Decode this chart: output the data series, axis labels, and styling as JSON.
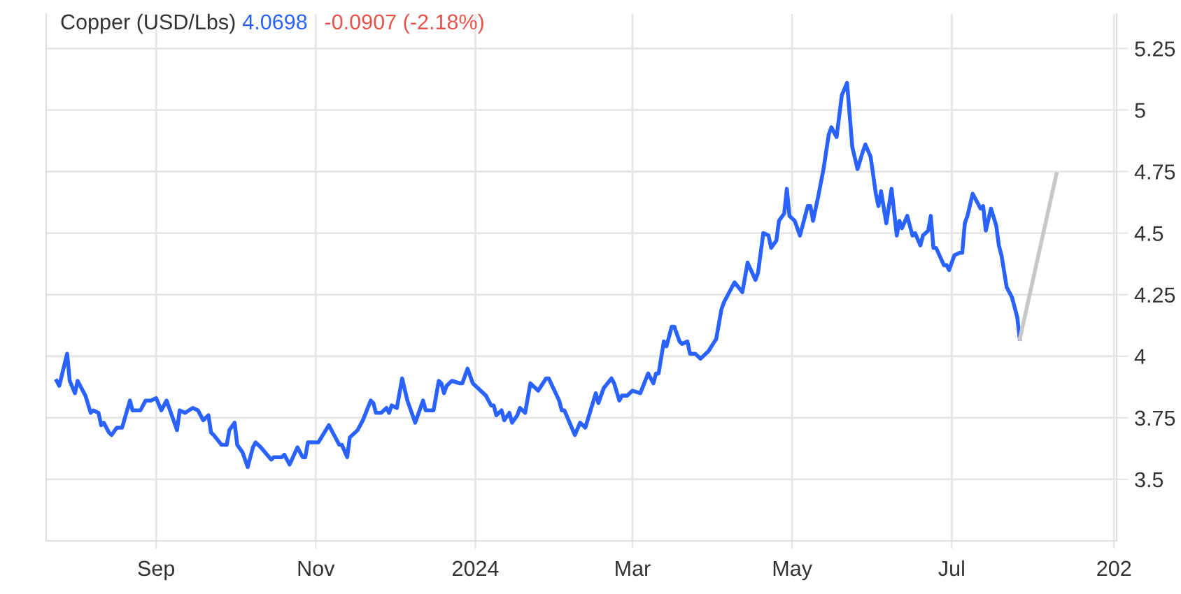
{
  "chart_data": {
    "type": "line",
    "title": "Copper (USD/Lbs)",
    "subtitle": "4.0698",
    "annotations": [
      "-0.0907 (-2.18%)"
    ],
    "xlim": [
      "2023-07-21",
      "2024-09-02"
    ],
    "xticks": [
      {
        "value": "2023-09-01",
        "label": "Sep"
      },
      {
        "value": "2023-11-01",
        "label": "Nov"
      },
      {
        "value": "2024-01-01",
        "label": "2024"
      },
      {
        "value": "2024-03-01",
        "label": "Mar"
      },
      {
        "value": "2024-05-01",
        "label": "May"
      },
      {
        "value": "2024-07-01",
        "label": "Jul"
      },
      {
        "value": "2024-09-01",
        "label": "202"
      }
    ],
    "ylim": [
      3.25,
      5.39
    ],
    "yticks": [
      3.5,
      3.75,
      4,
      4.25,
      4.5,
      4.75,
      5,
      5.25
    ],
    "grid": true,
    "marker": "none",
    "line_style": "solid",
    "series": [
      {
        "color": "#2962ff",
        "x": [
          "2023-07-25",
          "2023-07-26",
          "2023-07-29",
          "2023-07-30",
          "2023-08-01",
          "2023-08-02",
          "2023-08-05",
          "2023-08-07",
          "2023-08-08",
          "2023-08-10",
          "2023-08-11",
          "2023-08-12",
          "2023-08-14",
          "2023-08-15",
          "2023-08-17",
          "2023-08-19",
          "2023-08-22",
          "2023-08-23",
          "2023-08-26",
          "2023-08-28",
          "2023-08-30",
          "2023-09-01",
          "2023-09-03",
          "2023-09-05",
          "2023-09-07",
          "2023-09-09",
          "2023-09-10",
          "2023-09-12",
          "2023-09-15",
          "2023-09-17",
          "2023-09-19",
          "2023-09-21",
          "2023-09-22",
          "2023-09-23",
          "2023-09-26",
          "2023-09-28",
          "2023-09-29",
          "2023-10-01",
          "2023-10-02",
          "2023-10-04",
          "2023-10-06",
          "2023-10-08",
          "2023-10-09",
          "2023-10-11",
          "2023-10-15",
          "2023-10-16",
          "2023-10-19",
          "2023-10-20",
          "2023-10-22",
          "2023-10-25",
          "2023-10-27",
          "2023-10-28",
          "2023-10-29",
          "2023-10-31",
          "2023-11-02",
          "2023-11-06",
          "2023-11-08",
          "2023-11-10",
          "2023-11-11",
          "2023-11-13",
          "2023-11-14",
          "2023-11-17",
          "2023-11-18",
          "2023-11-19",
          "2023-11-22",
          "2023-11-23",
          "2023-11-24",
          "2023-11-26",
          "2023-11-28",
          "2023-11-29",
          "2023-11-30",
          "2023-12-02",
          "2023-12-04",
          "2023-12-06",
          "2023-12-09",
          "2023-12-11",
          "2023-12-12",
          "2023-12-13",
          "2023-12-16",
          "2023-12-18",
          "2023-12-19",
          "2023-12-20",
          "2023-12-21",
          "2023-12-23",
          "2023-12-26",
          "2023-12-27",
          "2023-12-29",
          "2023-12-31",
          "2024-01-05",
          "2024-01-07",
          "2024-01-08",
          "2024-01-09",
          "2024-01-11",
          "2024-01-12",
          "2024-01-14",
          "2024-01-15",
          "2024-01-17",
          "2024-01-18",
          "2024-01-20",
          "2024-01-22",
          "2024-01-25",
          "2024-01-28",
          "2024-01-29",
          "2024-02-02",
          "2024-02-03",
          "2024-02-04",
          "2024-02-06",
          "2024-02-08",
          "2024-02-10",
          "2024-02-12",
          "2024-02-16",
          "2024-02-17",
          "2024-02-19",
          "2024-02-22",
          "2024-02-23",
          "2024-02-25",
          "2024-02-26",
          "2024-02-28",
          "2024-03-01",
          "2024-03-04",
          "2024-03-07",
          "2024-03-09",
          "2024-03-10",
          "2024-03-11",
          "2024-03-13",
          "2024-03-14",
          "2024-03-16",
          "2024-03-17",
          "2024-03-19",
          "2024-03-20",
          "2024-03-22",
          "2024-03-23",
          "2024-03-25",
          "2024-03-27",
          "2024-03-30",
          "2024-04-02",
          "2024-04-04",
          "2024-04-05",
          "2024-04-09",
          "2024-04-12",
          "2024-04-14",
          "2024-04-17",
          "2024-04-18",
          "2024-04-20",
          "2024-04-22",
          "2024-04-23",
          "2024-04-25",
          "2024-04-26",
          "2024-04-28",
          "2024-04-29",
          "2024-04-30",
          "2024-05-02",
          "2024-05-04",
          "2024-05-07",
          "2024-05-08",
          "2024-05-09",
          "2024-05-11",
          "2024-05-13",
          "2024-05-15",
          "2024-05-16",
          "2024-05-18",
          "2024-05-20",
          "2024-05-22",
          "2024-05-24",
          "2024-05-26",
          "2024-05-28",
          "2024-05-29",
          "2024-05-31",
          "2024-06-02",
          "2024-06-03",
          "2024-06-04",
          "2024-06-06",
          "2024-06-08",
          "2024-06-10",
          "2024-06-11",
          "2024-06-12",
          "2024-06-14",
          "2024-06-16",
          "2024-06-17",
          "2024-06-19",
          "2024-06-20",
          "2024-06-22",
          "2024-06-23",
          "2024-06-24",
          "2024-06-25",
          "2024-06-28",
          "2024-06-29",
          "2024-06-30",
          "2024-07-02",
          "2024-07-04",
          "2024-07-05",
          "2024-07-06",
          "2024-07-07",
          "2024-07-09",
          "2024-07-11",
          "2024-07-12",
          "2024-07-13",
          "2024-07-14",
          "2024-07-16",
          "2024-07-18",
          "2024-07-19",
          "2024-07-20",
          "2024-07-22",
          "2024-07-24",
          "2024-07-26",
          "2024-07-27"
        ],
        "values": [
          3.9,
          3.88,
          4.01,
          3.9,
          3.85,
          3.9,
          3.84,
          3.77,
          3.78,
          3.77,
          3.72,
          3.73,
          3.69,
          3.68,
          3.71,
          3.71,
          3.82,
          3.78,
          3.78,
          3.82,
          3.82,
          3.83,
          3.78,
          3.82,
          3.76,
          3.7,
          3.78,
          3.77,
          3.79,
          3.78,
          3.74,
          3.76,
          3.69,
          3.68,
          3.64,
          3.64,
          3.7,
          3.73,
          3.64,
          3.61,
          3.55,
          3.63,
          3.65,
          3.63,
          3.58,
          3.59,
          3.59,
          3.6,
          3.56,
          3.63,
          3.59,
          3.59,
          3.65,
          3.65,
          3.65,
          3.72,
          3.68,
          3.64,
          3.64,
          3.59,
          3.67,
          3.7,
          3.72,
          3.74,
          3.82,
          3.81,
          3.77,
          3.77,
          3.79,
          3.77,
          3.8,
          3.79,
          3.91,
          3.82,
          3.73,
          3.79,
          3.82,
          3.78,
          3.78,
          3.9,
          3.89,
          3.85,
          3.88,
          3.9,
          3.89,
          3.89,
          3.95,
          3.89,
          3.84,
          3.8,
          3.8,
          3.76,
          3.78,
          3.74,
          3.77,
          3.73,
          3.76,
          3.79,
          3.77,
          3.89,
          3.86,
          3.91,
          3.91,
          3.82,
          3.78,
          3.78,
          3.73,
          3.68,
          3.73,
          3.71,
          3.85,
          3.81,
          3.87,
          3.91,
          3.89,
          3.82,
          3.84,
          3.84,
          3.86,
          3.85,
          3.93,
          3.89,
          3.93,
          3.93,
          4.06,
          4.04,
          4.12,
          4.12,
          4.06,
          4.05,
          4.06,
          4.01,
          4.01,
          3.99,
          4.02,
          4.07,
          4.19,
          4.22,
          4.3,
          4.26,
          4.38,
          4.31,
          4.34,
          4.5,
          4.49,
          4.44,
          4.47,
          4.55,
          4.58,
          4.68,
          4.57,
          4.55,
          4.49,
          4.61,
          4.61,
          4.55,
          4.65,
          4.76,
          4.9,
          4.93,
          4.89,
          5.06,
          5.11,
          4.85,
          4.76,
          4.83,
          4.86,
          4.81,
          4.66,
          4.61,
          4.67,
          4.54,
          4.68,
          4.49,
          4.55,
          4.52,
          4.57,
          4.49,
          4.5,
          4.45,
          4.49,
          4.51,
          4.57,
          4.44,
          4.44,
          4.37,
          4.37,
          4.35,
          4.41,
          4.42,
          4.42,
          4.54,
          4.57,
          4.66,
          4.62,
          4.6,
          4.61,
          4.51,
          4.6,
          4.53,
          4.45,
          4.41,
          4.28,
          4.24,
          4.16,
          4.07
        ]
      },
      {
        "color": "#c8c8c8",
        "x": [
          "2024-07-27",
          "2024-08-10"
        ],
        "values": [
          4.07,
          4.74
        ]
      }
    ]
  }
}
